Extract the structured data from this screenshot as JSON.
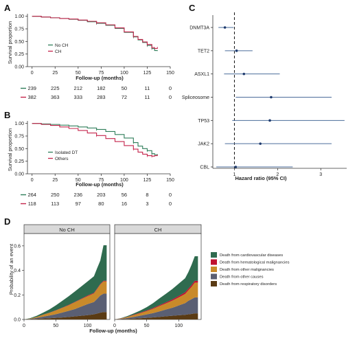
{
  "figure": {
    "panel_letters": [
      "A",
      "B",
      "C",
      "D"
    ]
  },
  "chart_data": [
    {
      "panel": "A",
      "type": "line",
      "xlabel": "Follow-up (months)",
      "ylabel": "Survival proportion",
      "xticks": [
        0,
        25,
        50,
        75,
        100,
        125,
        150
      ],
      "yticks": [
        "0.00",
        "0.25",
        "0.50",
        "0.75",
        "1.00"
      ],
      "xlim": [
        -5,
        150
      ],
      "ylim": [
        0,
        1.05
      ],
      "legend_position": "lower-left",
      "series": [
        {
          "name": "No CH",
          "color": "#2e7d59",
          "x": [
            0,
            10,
            20,
            30,
            40,
            50,
            60,
            70,
            80,
            90,
            100,
            110,
            115,
            120,
            125,
            130,
            133,
            136
          ],
          "y": [
            1.0,
            0.985,
            0.97,
            0.955,
            0.94,
            0.92,
            0.89,
            0.86,
            0.82,
            0.76,
            0.68,
            0.59,
            0.53,
            0.48,
            0.42,
            0.36,
            0.32,
            0.31
          ]
        },
        {
          "name": "CH",
          "color": "#c4234a",
          "x": [
            0,
            10,
            20,
            30,
            40,
            50,
            60,
            70,
            80,
            90,
            100,
            110,
            115,
            120,
            125,
            130,
            133,
            136
          ],
          "y": [
            1.0,
            0.985,
            0.97,
            0.955,
            0.945,
            0.925,
            0.9,
            0.87,
            0.83,
            0.77,
            0.69,
            0.6,
            0.54,
            0.49,
            0.44,
            0.38,
            0.36,
            0.39
          ]
        }
      ],
      "risk_table": {
        "rows": [
          {
            "name": "No CH",
            "color": "#2e7d59",
            "values": [
              "239",
              "225",
              "212",
              "182",
              "50",
              "11",
              "0"
            ]
          },
          {
            "name": "CH",
            "color": "#c4234a",
            "values": [
              "382",
              "363",
              "333",
              "283",
              "72",
              "11",
              "0"
            ]
          }
        ]
      }
    },
    {
      "panel": "B",
      "type": "line",
      "xlabel": "Follow-up (months)",
      "ylabel": "Survival proportion",
      "xticks": [
        0,
        25,
        50,
        75,
        100,
        125,
        150
      ],
      "yticks": [
        "0.00",
        "0.25",
        "0.50",
        "0.75",
        "1.00"
      ],
      "xlim": [
        -5,
        150
      ],
      "ylim": [
        0,
        1.05
      ],
      "legend_position": "lower-left",
      "series": [
        {
          "name": "Isolated DT",
          "color": "#2e7d59",
          "x": [
            0,
            10,
            20,
            30,
            40,
            50,
            60,
            70,
            80,
            90,
            100,
            110,
            115,
            120,
            125,
            130,
            133,
            136
          ],
          "y": [
            1.0,
            0.99,
            0.98,
            0.965,
            0.95,
            0.93,
            0.91,
            0.88,
            0.84,
            0.78,
            0.71,
            0.62,
            0.55,
            0.5,
            0.46,
            0.4,
            0.38,
            0.39
          ]
        },
        {
          "name": "Others",
          "color": "#c4234a",
          "x": [
            0,
            10,
            20,
            30,
            40,
            50,
            60,
            70,
            80,
            90,
            100,
            110,
            115,
            120,
            125,
            130,
            133,
            136
          ],
          "y": [
            1.0,
            0.98,
            0.96,
            0.93,
            0.9,
            0.86,
            0.81,
            0.76,
            0.7,
            0.64,
            0.56,
            0.49,
            0.43,
            0.39,
            0.36,
            0.35,
            0.36,
            0.38
          ]
        }
      ],
      "risk_table": {
        "rows": [
          {
            "name": "Isolated DT",
            "color": "#2e7d59",
            "values": [
              "264",
              "250",
              "236",
              "203",
              "56",
              "8",
              "0"
            ]
          },
          {
            "name": "Others",
            "color": "#c4234a",
            "values": [
              "118",
              "113",
              "97",
              "80",
              "16",
              "3",
              "0"
            ]
          }
        ]
      }
    },
    {
      "panel": "C",
      "type": "forest",
      "xlabel": "Hazard ratio (95% CI)",
      "xticks": [
        1,
        2,
        3
      ],
      "xlim": [
        0.5,
        3.6
      ],
      "reference_line": 1,
      "line_color": "#4a6b9a",
      "rows": [
        {
          "label": "DNMT3A",
          "hr": 0.78,
          "lo": 0.63,
          "hi": 0.98
        },
        {
          "label": "TET2",
          "hr": 1.05,
          "lo": 0.78,
          "hi": 1.42
        },
        {
          "label": "ASXL1",
          "hr": 1.22,
          "lo": 0.76,
          "hi": 2.05
        },
        {
          "label": "Spliceosome",
          "hr": 1.85,
          "lo": 1.03,
          "hi": 3.25
        },
        {
          "label": "TP53",
          "hr": 1.82,
          "lo": 0.95,
          "hi": 3.55
        },
        {
          "label": "JAK2",
          "hr": 1.6,
          "lo": 0.78,
          "hi": 3.25
        },
        {
          "label": "CBL",
          "hr": 1.03,
          "lo": 0.58,
          "hi": 2.35
        }
      ]
    },
    {
      "panel": "D",
      "type": "area",
      "xlabel": "Follow-up (months)",
      "ylabel": "Probability of an event",
      "xticks": [
        0,
        50,
        100
      ],
      "yticks": [
        "0.0",
        "0.2",
        "0.4",
        "0.6"
      ],
      "xlim": [
        0,
        135
      ],
      "ylim": [
        0,
        0.7
      ],
      "facets": [
        "No CH",
        "CH"
      ],
      "categories": [
        {
          "name": "Death from cardiovascular diseases",
          "color": "#2f6b4f"
        },
        {
          "name": "Death from hematological malignancies",
          "color": "#c0102e"
        },
        {
          "name": "Death from other malignancies",
          "color": "#c98a2a"
        },
        {
          "name": "Death from other causes",
          "color": "#5a5f73"
        },
        {
          "name": "Death from respiratory disorders",
          "color": "#5a3b14"
        }
      ],
      "x": [
        0,
        10,
        20,
        30,
        40,
        50,
        60,
        70,
        80,
        90,
        100,
        110,
        115,
        120,
        125,
        130
      ],
      "series": [
        {
          "facet": "No CH",
          "stack_order": [
            "Death from respiratory disorders",
            "Death from other causes",
            "Death from other malignancies",
            "Death from hematological malignancies",
            "Death from cardiovascular diseases"
          ],
          "values": [
            [
              0,
              0.002,
              0.005,
              0.008,
              0.01,
              0.013,
              0.016,
              0.02,
              0.025,
              0.03,
              0.035,
              0.042,
              0.048,
              0.055,
              0.06,
              0.06
            ],
            [
              0,
              0.003,
              0.008,
              0.015,
              0.022,
              0.03,
              0.04,
              0.05,
              0.06,
              0.075,
              0.09,
              0.1,
              0.12,
              0.14,
              0.15,
              0.15
            ],
            [
              0,
              0.003,
              0.008,
              0.015,
              0.022,
              0.03,
              0.038,
              0.045,
              0.055,
              0.06,
              0.065,
              0.07,
              0.08,
              0.09,
              0.1,
              0.1
            ],
            [
              0,
              0,
              0,
              0.001,
              0.001,
              0.002,
              0.002,
              0.003,
              0.003,
              0.004,
              0.005,
              0.005,
              0.005,
              0.005,
              0.005,
              0.005
            ],
            [
              0,
              0.003,
              0.009,
              0.016,
              0.027,
              0.04,
              0.055,
              0.07,
              0.085,
              0.1,
              0.115,
              0.135,
              0.165,
              0.19,
              0.29,
              0.29
            ]
          ]
        },
        {
          "facet": "CH",
          "stack_order": [
            "Death from respiratory disorders",
            "Death from other causes",
            "Death from other malignancies",
            "Death from hematological malignancies",
            "Death from cardiovascular diseases"
          ],
          "values": [
            [
              0,
              0.002,
              0.004,
              0.007,
              0.01,
              0.013,
              0.017,
              0.021,
              0.026,
              0.03,
              0.034,
              0.038,
              0.042,
              0.045,
              0.05,
              0.05
            ],
            [
              0,
              0.003,
              0.008,
              0.014,
              0.021,
              0.028,
              0.035,
              0.045,
              0.055,
              0.065,
              0.08,
              0.095,
              0.11,
              0.12,
              0.13,
              0.13
            ],
            [
              0,
              0.003,
              0.008,
              0.015,
              0.02,
              0.027,
              0.035,
              0.043,
              0.05,
              0.058,
              0.066,
              0.075,
              0.085,
              0.1,
              0.12,
              0.12
            ],
            [
              0,
              0.001,
              0.002,
              0.003,
              0.004,
              0.005,
              0.006,
              0.007,
              0.008,
              0.01,
              0.012,
              0.013,
              0.014,
              0.015,
              0.015,
              0.015
            ],
            [
              0,
              0.002,
              0.006,
              0.011,
              0.018,
              0.027,
              0.04,
              0.056,
              0.07,
              0.085,
              0.1,
              0.115,
              0.135,
              0.165,
              0.2,
              0.2
            ]
          ]
        }
      ]
    }
  ]
}
